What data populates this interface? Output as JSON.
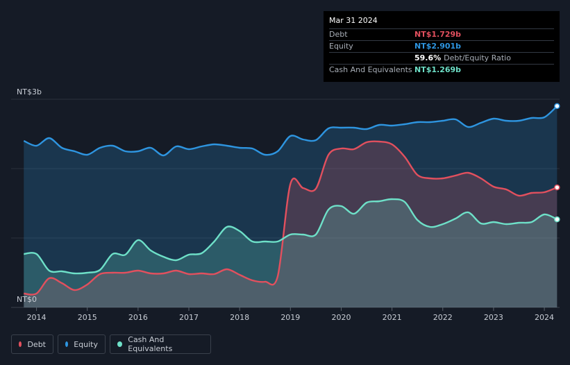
{
  "chart_data": {
    "type": "area",
    "currency_unit": "NT$ billions",
    "y_tick_labels": [
      "NT$0",
      "NT$3b"
    ],
    "ylim": [
      0,
      3
    ],
    "x_tick_labels": [
      "2014",
      "2015",
      "2016",
      "2017",
      "2018",
      "2019",
      "2020",
      "2021",
      "2022",
      "2023",
      "2024"
    ],
    "x_tick_values": [
      2014,
      2015,
      2016,
      2017,
      2018,
      2019,
      2020,
      2021,
      2022,
      2023,
      2024
    ],
    "xlim": [
      2013.5,
      2024.3
    ],
    "grid": true,
    "legend_placement": "bottom-left",
    "series": [
      {
        "name": "Debt",
        "color": "#e2505e",
        "x": [
          2013.75,
          2014.0,
          2014.25,
          2014.5,
          2014.75,
          2015.0,
          2015.25,
          2015.5,
          2015.75,
          2016.0,
          2016.25,
          2016.5,
          2016.75,
          2017.0,
          2017.25,
          2017.5,
          2017.75,
          2018.0,
          2018.25,
          2018.5,
          2018.75,
          2019.0,
          2019.25,
          2019.5,
          2019.75,
          2020.0,
          2020.25,
          2020.5,
          2020.75,
          2021.0,
          2021.25,
          2021.5,
          2021.75,
          2022.0,
          2022.25,
          2022.5,
          2022.75,
          2023.0,
          2023.25,
          2023.5,
          2023.75,
          2024.0,
          2024.25
        ],
        "values": [
          0.2,
          0.2,
          0.42,
          0.35,
          0.25,
          0.33,
          0.48,
          0.5,
          0.5,
          0.53,
          0.49,
          0.49,
          0.53,
          0.48,
          0.49,
          0.48,
          0.55,
          0.47,
          0.39,
          0.37,
          0.45,
          1.78,
          1.72,
          1.71,
          2.2,
          2.29,
          2.28,
          2.38,
          2.39,
          2.35,
          2.17,
          1.91,
          1.86,
          1.86,
          1.9,
          1.94,
          1.86,
          1.74,
          1.7,
          1.61,
          1.65,
          1.66,
          1.729
        ]
      },
      {
        "name": "Equity",
        "color": "#2e95e0",
        "x": [
          2013.75,
          2014.0,
          2014.25,
          2014.5,
          2014.75,
          2015.0,
          2015.25,
          2015.5,
          2015.75,
          2016.0,
          2016.25,
          2016.5,
          2016.75,
          2017.0,
          2017.25,
          2017.5,
          2017.75,
          2018.0,
          2018.25,
          2018.5,
          2018.75,
          2019.0,
          2019.25,
          2019.5,
          2019.75,
          2020.0,
          2020.25,
          2020.5,
          2020.75,
          2021.0,
          2021.25,
          2021.5,
          2021.75,
          2022.0,
          2022.25,
          2022.5,
          2022.75,
          2023.0,
          2023.25,
          2023.5,
          2023.75,
          2024.0,
          2024.25
        ],
        "values": [
          2.4,
          2.33,
          2.44,
          2.3,
          2.25,
          2.2,
          2.3,
          2.33,
          2.25,
          2.25,
          2.3,
          2.19,
          2.32,
          2.28,
          2.32,
          2.35,
          2.33,
          2.3,
          2.29,
          2.2,
          2.25,
          2.47,
          2.42,
          2.41,
          2.58,
          2.59,
          2.59,
          2.57,
          2.63,
          2.62,
          2.64,
          2.67,
          2.67,
          2.69,
          2.71,
          2.6,
          2.66,
          2.72,
          2.69,
          2.69,
          2.73,
          2.74,
          2.901
        ]
      },
      {
        "name": "Cash And Equivalents",
        "color": "#6ee0c8",
        "x": [
          2013.75,
          2014.0,
          2014.25,
          2014.5,
          2014.75,
          2015.0,
          2015.25,
          2015.5,
          2015.75,
          2016.0,
          2016.25,
          2016.5,
          2016.75,
          2017.0,
          2017.25,
          2017.5,
          2017.75,
          2018.0,
          2018.25,
          2018.5,
          2018.75,
          2019.0,
          2019.25,
          2019.5,
          2019.75,
          2020.0,
          2020.25,
          2020.5,
          2020.75,
          2021.0,
          2021.25,
          2021.5,
          2021.75,
          2022.0,
          2022.25,
          2022.5,
          2022.75,
          2023.0,
          2023.25,
          2023.5,
          2023.75,
          2024.0,
          2024.25
        ],
        "values": [
          0.77,
          0.77,
          0.53,
          0.52,
          0.49,
          0.5,
          0.54,
          0.77,
          0.76,
          0.97,
          0.82,
          0.73,
          0.68,
          0.76,
          0.78,
          0.95,
          1.16,
          1.1,
          0.95,
          0.95,
          0.95,
          1.05,
          1.05,
          1.05,
          1.41,
          1.46,
          1.35,
          1.51,
          1.53,
          1.56,
          1.52,
          1.26,
          1.16,
          1.2,
          1.28,
          1.37,
          1.21,
          1.23,
          1.2,
          1.22,
          1.23,
          1.34,
          1.269
        ]
      }
    ]
  },
  "tooltip": {
    "date": "Mar 31 2024",
    "rows": [
      {
        "label": "Debt",
        "value": "NT$1.729b",
        "color": "#e2505e"
      },
      {
        "label": "Equity",
        "value": "NT$2.901b",
        "color": "#2e95e0"
      },
      {
        "label": "",
        "value": "59.6%",
        "sub": "Debt/Equity Ratio",
        "color": "#ffffff"
      },
      {
        "label": "Cash And Equivalents",
        "value": "NT$1.269b",
        "color": "#6ee0c8"
      }
    ]
  },
  "legend": [
    {
      "label": "Debt",
      "color": "#e2505e"
    },
    {
      "label": "Equity",
      "color": "#2e95e0"
    },
    {
      "label": "Cash And Equivalents",
      "color": "#6ee0c8"
    }
  ]
}
